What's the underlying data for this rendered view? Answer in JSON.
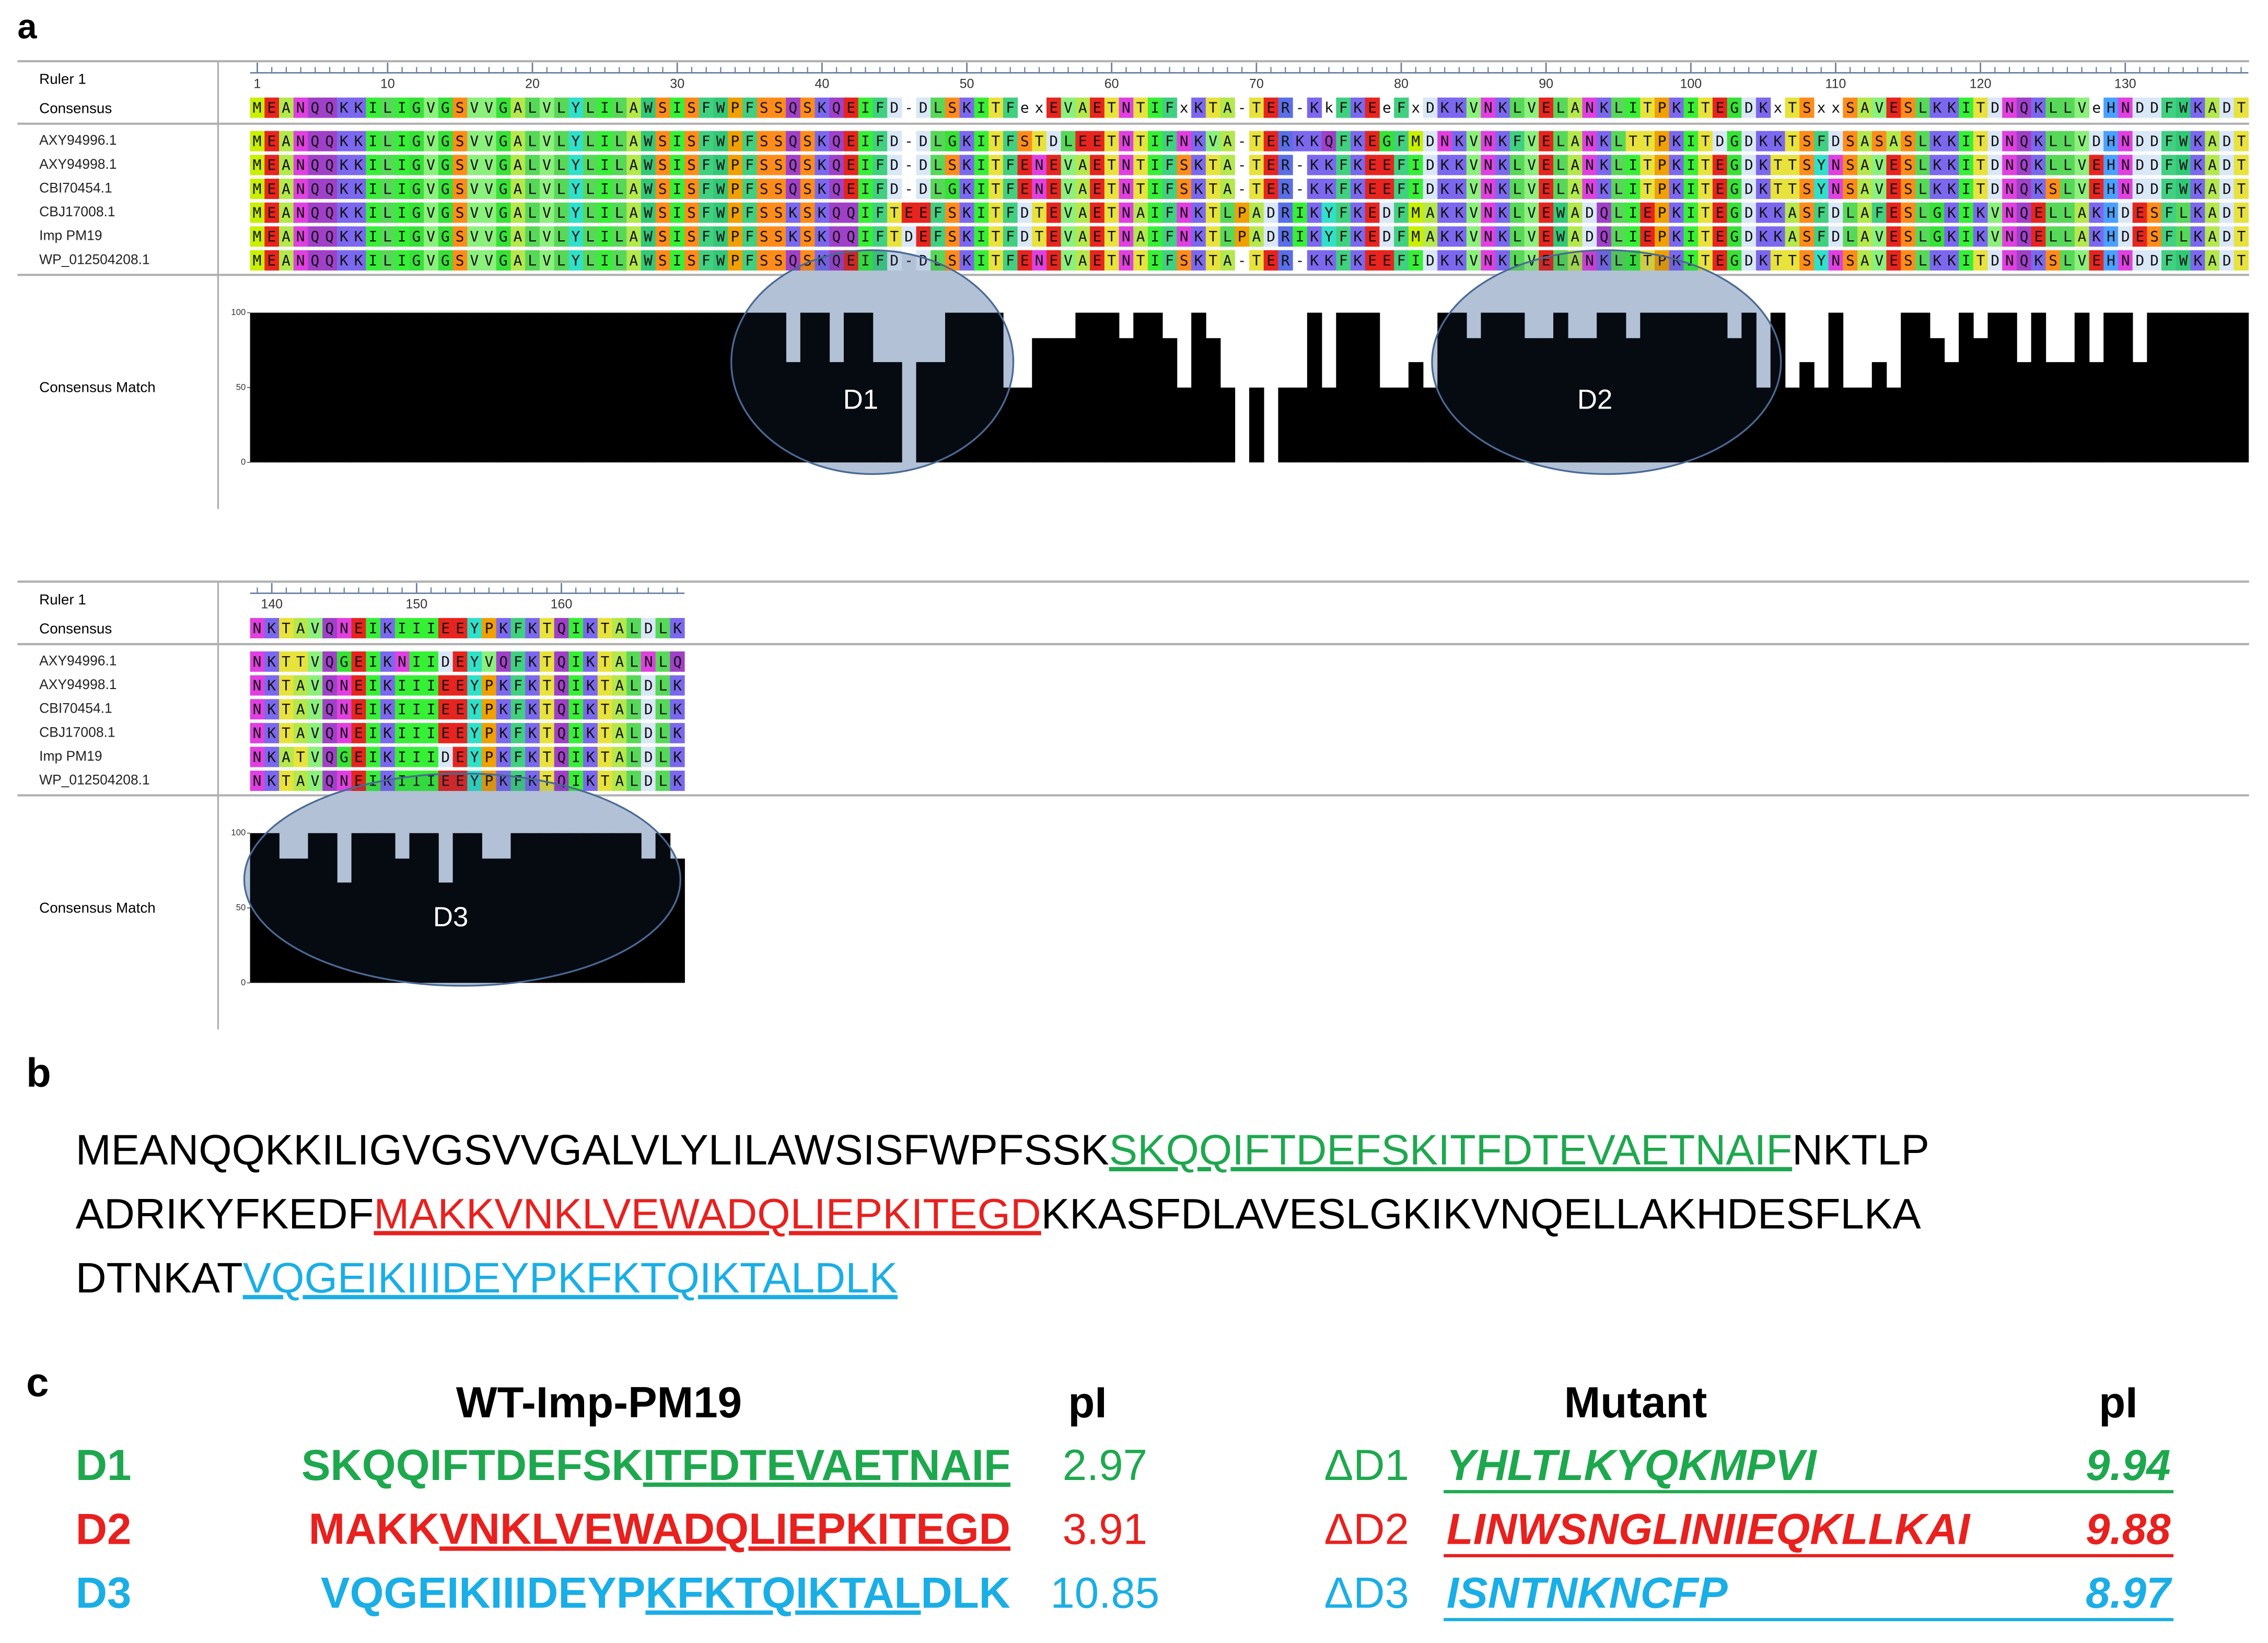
{
  "panel_labels": [
    "a",
    "b",
    "c"
  ],
  "alignment": {
    "ruler_label": "Ruler 1",
    "consensus_label": "Consensus",
    "match_label": "Consensus Match",
    "match_ticks": [
      100,
      50,
      0
    ],
    "blocks": [
      {
        "ruler_ticks": [
          1,
          10,
          20,
          30,
          40,
          50,
          60,
          70,
          80,
          90,
          100,
          110,
          120,
          130
        ],
        "consensus": "MEANQQKKILIGVGSVVGALVLYLILAWSISFWPFSSQSKQEIFD-DLSKITFexEVAETNTIFxKTA-TER-KkFKEeFxDKKVNKLVELANKLITPKITEGDKxTSxxSAVESLKKITDNQKLLVeHNDDFWKADT",
        "sequences": [
          {
            "name": "AXY94996.1",
            "seq": "MEANQQKKILIGVGSVVGALVLYLILAWSISFWPFSSQSKQEIFD-DLGKITFSTDLEETNTIFNKVA-TERKKQFKEGFMDNKVNKFVELANKLTTPKITDGDKKTSFDSASASLKKITDNQKLLVDHNDDFWKADT"
          },
          {
            "name": "AXY94998.1",
            "seq": "MEANQQKKILIGVGSVVGALVLYLILAWSISFWPFSSQSKQEIFD-DLSKITFENEVAETNTIFSKTA-TER-KKFKEEFIDKKVNKLVELANKLITPKITEGDKTTSYNSAVESLKKITDNQKLLVEHNDDFWKADT"
          },
          {
            "name": "CBI70454.1",
            "seq": "MEANQQKKILIGVGSVVGALVLYLILAWSISFWPFSSQSKQEIFD-DLGKITFENEVAETNTIFSKTA-TER-KKFKEEFIDKKVNKLVELANKLITPKITEGDKTTSYNSAVESLKKITDNQKSLVEHNDDFWKADT"
          },
          {
            "name": "CBJ17008.1",
            "seq": "MEANQQKKILIGVGSVVGALVLYLILAWSISFWPFSSKSKQQIFTEEFSKITFDTEVAETNAIFNKTLPADRIKYFKEDFMAKKVNKLVEWADQLIEPKITEGDKKASFDLAFESLGKIKVNQELLAKHDESFLKADT"
          },
          {
            "name": "Imp PM19",
            "seq": "MEANQQKKILIGVGSVVGALVLYLILAWSISFWPFSSKSKQQIFTDEFSKITFDTEVAETNAIFNKTLPADRIKYFKEDFMAKKVNKLVEWADQLIEPKITEGDKKASFDLAVESLGKIKVNQELLAKHDESFLKADT"
          },
          {
            "name": "WP_012504208.1",
            "seq": "MEANQQKKILIGVGSVVGALVLYLILAWSISFWPFSSQSKQEIFD-DLSKITFENEVAETNTIFSKTA-TER-KKFKEEFIDKKVNKLVELANKLITPKITEGDKTTSYNSAVESLKKITDNQKSLVEHNDDFWKADT"
          }
        ],
        "match": [
          100,
          100,
          100,
          100,
          100,
          100,
          100,
          100,
          100,
          100,
          100,
          100,
          100,
          100,
          100,
          100,
          100,
          100,
          100,
          100,
          100,
          100,
          100,
          100,
          100,
          100,
          100,
          100,
          100,
          100,
          100,
          100,
          100,
          100,
          100,
          100,
          100,
          67,
          100,
          100,
          67,
          100,
          100,
          67,
          67,
          0,
          67,
          67,
          100,
          100,
          100,
          100,
          50,
          50,
          83,
          83,
          83,
          100,
          100,
          100,
          83,
          100,
          100,
          83,
          50,
          100,
          83,
          50,
          0,
          50,
          0,
          50,
          50,
          100,
          50,
          100,
          100,
          100,
          50,
          50,
          67,
          50,
          100,
          100,
          83,
          100,
          100,
          100,
          83,
          83,
          100,
          83,
          83,
          100,
          100,
          83,
          100,
          100,
          100,
          100,
          100,
          100,
          83,
          100,
          50,
          100,
          50,
          67,
          50,
          100,
          50,
          50,
          67,
          50,
          100,
          100,
          83,
          67,
          100,
          83,
          100,
          100,
          67,
          100,
          67,
          67,
          100,
          67,
          100,
          100,
          67,
          100,
          100,
          100,
          100,
          100,
          100,
          100
        ],
        "domains": [
          "D1",
          "D2"
        ]
      },
      {
        "ruler_ticks": [
          140,
          150,
          160
        ],
        "consensus": "NKTAVQNEIKIIIEEYPKFKTQIKTALDLK",
        "sequences": [
          {
            "name": "AXY94996.1",
            "seq": "NKTTVQGEIKNIIDEYVQFKTQIKTALNLQ"
          },
          {
            "name": "AXY94998.1",
            "seq": "NKTAVQNEIKIIIEEYPKFKTQIKTALDLK"
          },
          {
            "name": "CBI70454.1",
            "seq": "NKTAVQNEIKIIIEEYPKFKTQIKTALDLK"
          },
          {
            "name": "CBJ17008.1",
            "seq": "NKTAVQNEIKIIIEEYPKFKTQIKTALDLK"
          },
          {
            "name": "Imp PM19",
            "seq": "NKATVQGEIKIIIDEYPKFKTQIKTALDLK"
          },
          {
            "name": "WP_012504208.1",
            "seq": "NKTAVQNEIKIIIEEYPKFKTQIKTALDLK"
          }
        ],
        "match": [
          100,
          100,
          83,
          83,
          100,
          100,
          67,
          100,
          100,
          100,
          83,
          100,
          100,
          67,
          100,
          100,
          83,
          83,
          100,
          100,
          100,
          100,
          100,
          100,
          100,
          100,
          100,
          83,
          100,
          83
        ],
        "domains": [
          "D3"
        ]
      }
    ]
  },
  "sequence_panel": {
    "lines": [
      [
        {
          "text": "MEANQQKKILIGVGSVVGALVLYLILAWSISFWPFSSK"
        },
        {
          "text": "SKQQIFTDEFSKITFDTEVAETNAIF",
          "color": "#1ea84e",
          "underline": true
        },
        {
          "text": "NKTLP"
        }
      ],
      [
        {
          "text": "ADRIKYFKEDF"
        },
        {
          "text": "MAKKVNKLVEWADQLIEPKITEGD",
          "color": "#e8201e",
          "underline": true
        },
        {
          "text": "KKASFDLAVESLGKIKVNQELLAKHDESFLKA"
        }
      ],
      [
        {
          "text": "DTNKAT"
        },
        {
          "text": "VQGEIKIIIDEYPKFKTQIKTALDLK",
          "color": "#1aaee6",
          "underline": true
        }
      ]
    ]
  },
  "table": {
    "headers": [
      "WT-Imp-PM19",
      "pI",
      "Mutant",
      "pI"
    ],
    "rows": [
      {
        "label": "D1",
        "color": "#1ea84e",
        "wt": [
          {
            "text": "SKQQIFTDEFSK"
          },
          {
            "text": "ITFDTEVAETNAIF",
            "underline": true
          }
        ],
        "wt_pi": 2.97,
        "mutant_label": "ΔD1",
        "mutant": "YHLTLKYQKMPVI",
        "mutant_pi": 9.94
      },
      {
        "label": "D2",
        "color": "#e8201e",
        "wt": [
          {
            "text": "MAKK"
          },
          {
            "text": "VNKLVEWADQLIEPKITEGD",
            "underline": true
          }
        ],
        "wt_pi": 3.91,
        "mutant_label": "ΔD2",
        "mutant": "LINWSNGLINIIEQKLLKAI",
        "mutant_pi": 9.88
      },
      {
        "label": "D3",
        "color": "#1aaee6",
        "wt": [
          {
            "text": "VQGEIKIIIDEYP"
          },
          {
            "text": "KFKTQIKTAL",
            "underline": true
          },
          {
            "text": "DLK"
          }
        ],
        "wt_pi": 10.85,
        "mutant_label": "ΔD3",
        "mutant": "ISNTNKNCFP",
        "mutant_pi": 8.97
      }
    ]
  }
}
